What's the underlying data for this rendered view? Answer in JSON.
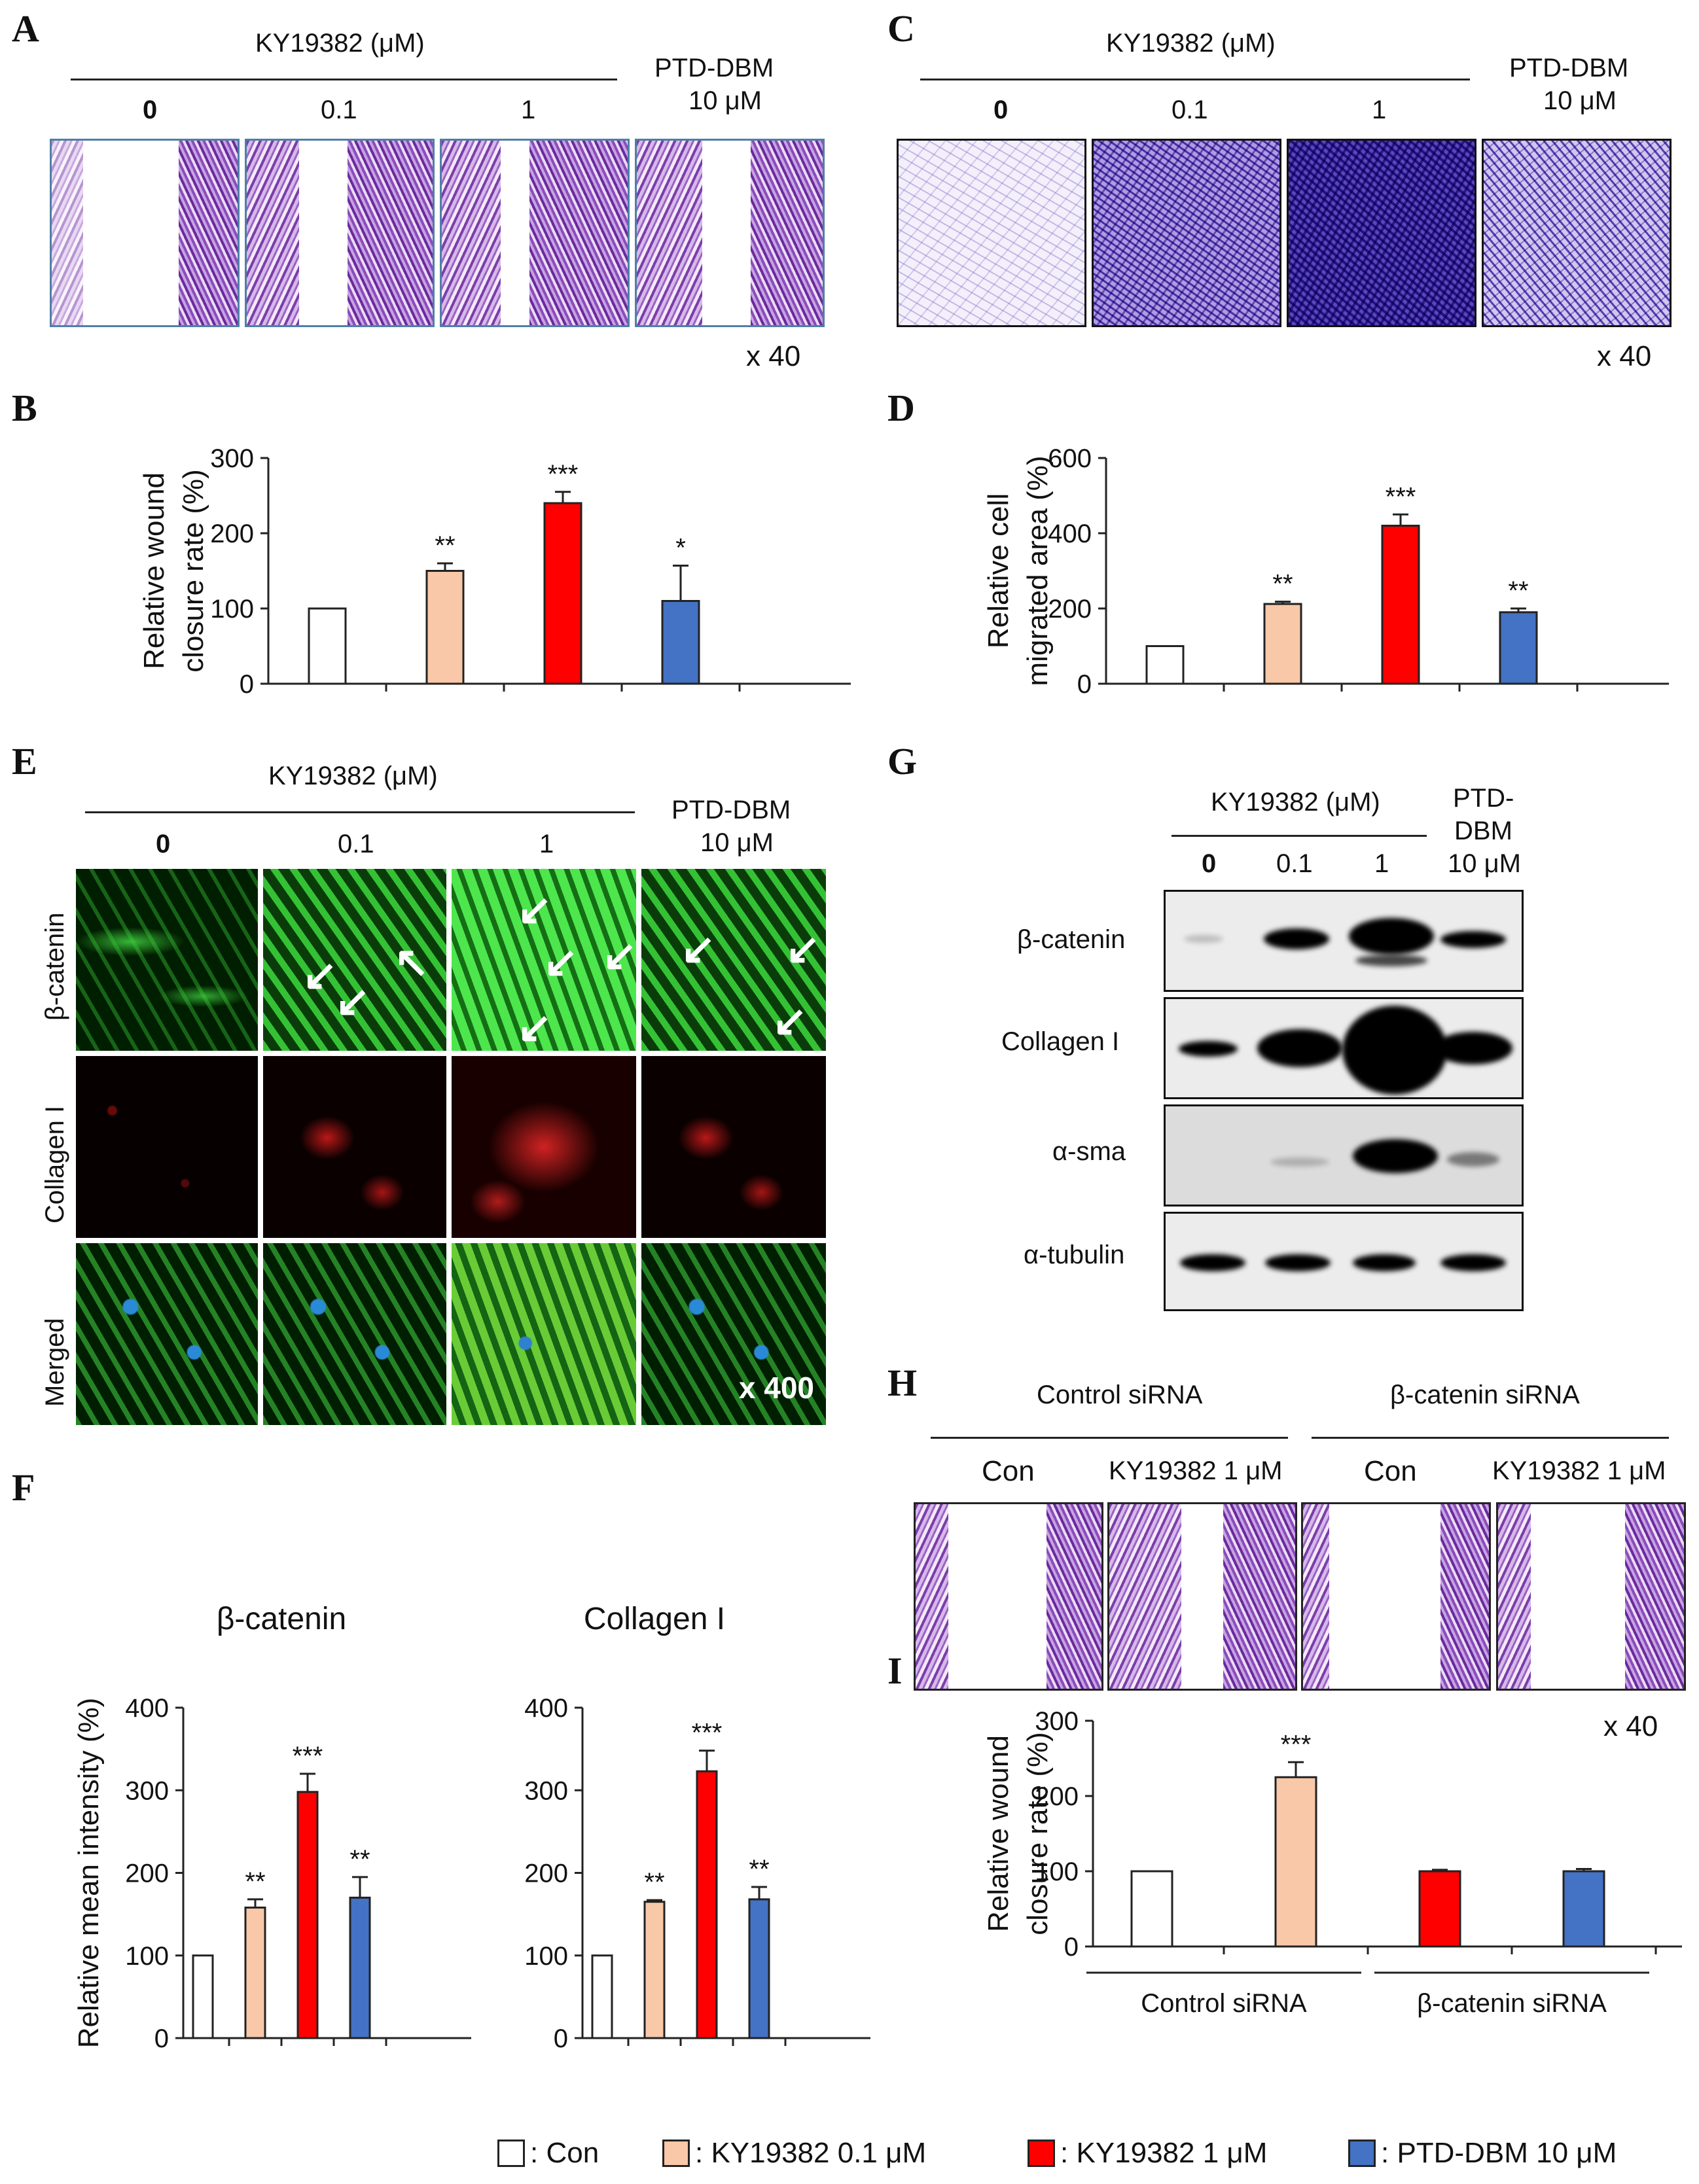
{
  "panel_letters": [
    "A",
    "B",
    "C",
    "D",
    "E",
    "F",
    "G",
    "H",
    "I"
  ],
  "compound_header": "KY19382 (μM)",
  "conc_labels": [
    "0",
    "0.1",
    "1"
  ],
  "ptd_line1": "PTD-DBM",
  "ptd_line2": "10 μM",
  "ptd_g1": "PTD-",
  "ptd_g2": "DBM",
  "mag40": "x 40",
  "mag400": "x 400",
  "e_rows": [
    "β-catenin",
    "Collagen I",
    "Merged"
  ],
  "g_rows": [
    "β-catenin",
    "Collagen  I",
    "α-sma",
    "α-tubulin"
  ],
  "h_groups": [
    "Control siRNA",
    "β-catenin siRNA"
  ],
  "h_cols": [
    "Con",
    "KY19382  1 μM",
    "Con",
    "KY19382  1 μM"
  ],
  "legend": [
    ": Con",
    ": KY19382 0.1 μM",
    ": KY19382 1 μM",
    ": PTD-DBM 10 μM"
  ],
  "colors": {
    "con": "#ffffff",
    "k01": "#f8c8a8",
    "k1": "#ff0000",
    "ptd": "#4472c4"
  },
  "chart_data": [
    {
      "id": "B",
      "type": "bar",
      "ylabel": "Relative wound closure rate (%)",
      "ylim": [
        0,
        300
      ],
      "yticks": [
        0,
        100,
        200,
        300
      ],
      "values": [
        100,
        150,
        240,
        110
      ],
      "errors": [
        0,
        10,
        15,
        47
      ],
      "stars": [
        "",
        "**",
        "***",
        "*"
      ]
    },
    {
      "id": "D",
      "type": "bar",
      "ylabel": "Relative cell migrated area (%)",
      "ylim": [
        0,
        600
      ],
      "yticks": [
        0,
        200,
        400,
        600
      ],
      "values": [
        100,
        212,
        420,
        190
      ],
      "errors": [
        0,
        6,
        30,
        10
      ],
      "stars": [
        "",
        "**",
        "***",
        "**"
      ]
    },
    {
      "id": "F1",
      "type": "bar",
      "title": "β-catenin",
      "ylabel": "Relative mean intensity (%)",
      "ylim": [
        0,
        400
      ],
      "yticks": [
        0,
        100,
        200,
        300,
        400
      ],
      "values": [
        100,
        158,
        298,
        170
      ],
      "errors": [
        0,
        10,
        22,
        25
      ],
      "stars": [
        "",
        "**",
        "***",
        "**"
      ]
    },
    {
      "id": "F2",
      "type": "bar",
      "title": "Collagen I",
      "ylabel": "",
      "ylim": [
        0,
        400
      ],
      "yticks": [
        0,
        100,
        200,
        300,
        400
      ],
      "values": [
        100,
        165,
        323,
        168
      ],
      "errors": [
        0,
        2,
        25,
        15
      ],
      "stars": [
        "",
        "**",
        "***",
        "**"
      ]
    },
    {
      "id": "I",
      "type": "bar",
      "ylabel": "Relative wound closure rate (%)",
      "ylim": [
        0,
        300
      ],
      "yticks": [
        0,
        100,
        200,
        300
      ],
      "values": [
        100,
        225,
        100,
        100
      ],
      "errors": [
        0,
        20,
        2,
        3
      ],
      "stars": [
        "",
        "***",
        "",
        ""
      ],
      "groups": [
        "Control siRNA",
        "β-catenin siRNA"
      ]
    }
  ]
}
